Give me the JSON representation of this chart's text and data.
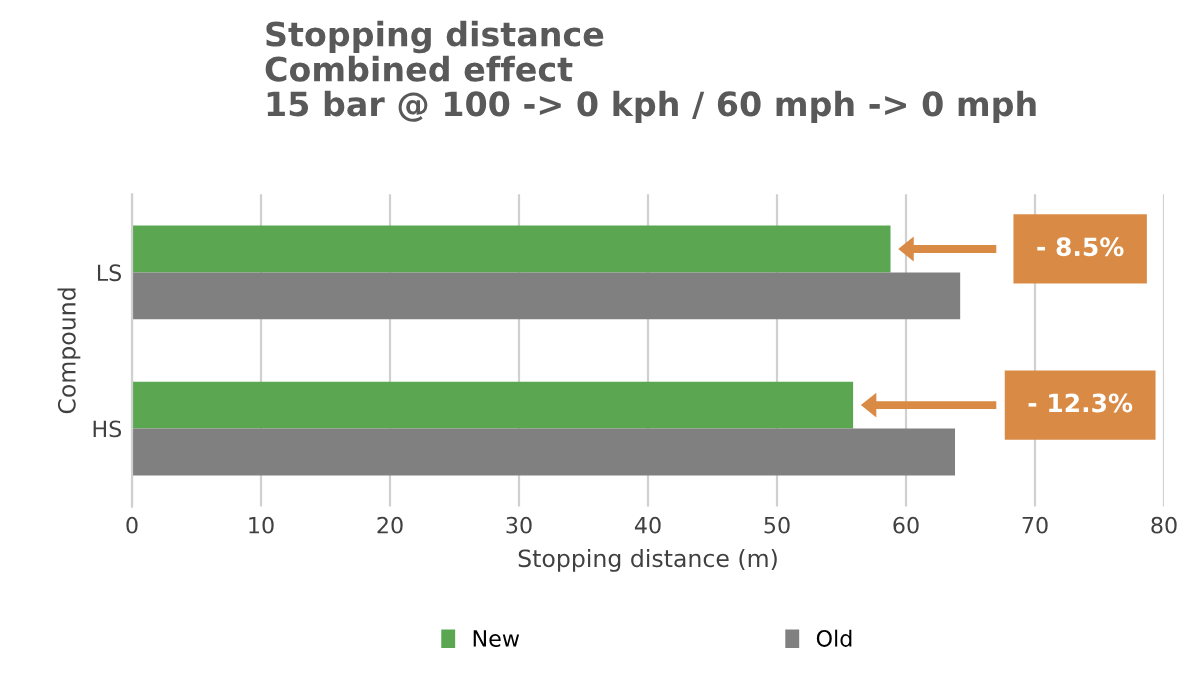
{
  "chart_data": {
    "type": "bar",
    "orientation": "horizontal",
    "title": "Stopping distance\nCombined effect\n15 bar @ 100 -> 0 kph / 60 mph -> 0 mph",
    "xlabel": "Stopping distance (m)",
    "ylabel": "Compound",
    "categories": [
      "LS",
      "HS"
    ],
    "series": [
      {
        "name": "New",
        "color": "#5ba651",
        "values": [
          58.8,
          55.9
        ]
      },
      {
        "name": "Old",
        "color": "#808080",
        "values": [
          64.2,
          63.8
        ]
      }
    ],
    "xlim": [
      0,
      80
    ],
    "xticks": [
      0,
      10,
      20,
      30,
      40,
      50,
      60,
      70,
      80
    ],
    "grid": "x",
    "legend": "bottom",
    "annotations": [
      "- 8.5%",
      "- 12.3%"
    ]
  }
}
